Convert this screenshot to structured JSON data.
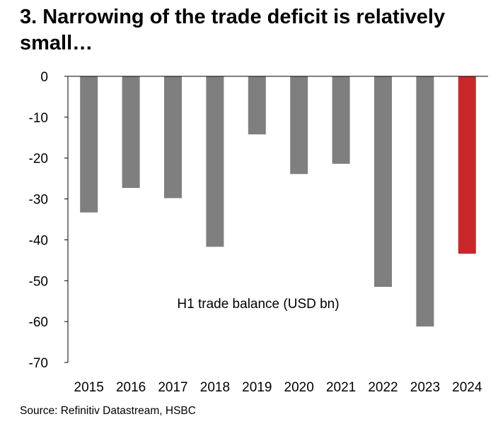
{
  "title": "3. Narrowing of the trade deficit is relatively small…",
  "source": "Source: Refinitiv Datastream, HSBC",
  "colors": {
    "bar": "#7f7f7f",
    "highlight": "#c9262a",
    "axis": "#000000"
  },
  "chart_data": {
    "type": "bar",
    "title": "3. Narrowing of the trade deficit is relatively small…",
    "annotation": "H1 trade balance (USD bn)",
    "categories": [
      "2015",
      "2016",
      "2017",
      "2018",
      "2019",
      "2020",
      "2021",
      "2022",
      "2023",
      "2024"
    ],
    "values": [
      -33.3,
      -27.3,
      -29.8,
      -41.7,
      -14.2,
      -23.9,
      -21.4,
      -51.5,
      -61.2,
      -43.4
    ],
    "highlight_category": "2024",
    "ylim": [
      -70,
      0
    ],
    "yticks": [
      0,
      -10,
      -20,
      -30,
      -40,
      -50,
      -60,
      -70
    ],
    "ytick_labels": [
      "0",
      "-10",
      "-20",
      "-30",
      "-40",
      "-50",
      "-60",
      "-70"
    ],
    "xlabel": "",
    "ylabel": "",
    "grid": false,
    "legend": "none"
  }
}
